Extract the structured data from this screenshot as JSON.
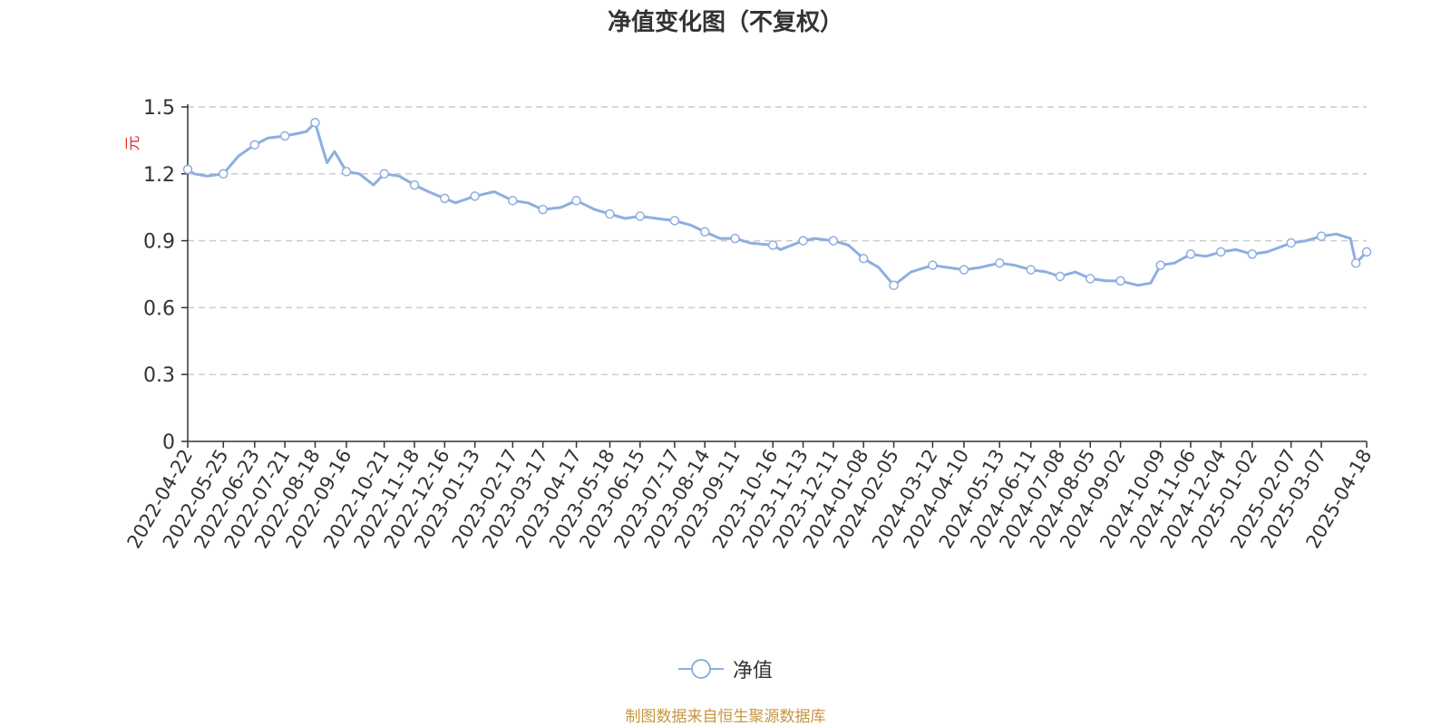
{
  "chart_data": {
    "type": "line",
    "title": "净值变化图（不复权）",
    "ylabel": "元",
    "xlabel": "",
    "ylim": [
      0,
      1.5
    ],
    "yticks": [
      "0",
      "0.3",
      "0.6",
      "0.9",
      "1.2",
      "1.5"
    ],
    "grid": true,
    "legend_position": "bottom",
    "x_tick_labels": [
      "2022-04-22",
      "2022-05-25",
      "2022-06-23",
      "2022-07-21",
      "2022-08-18",
      "2022-09-16",
      "2022-10-21",
      "2022-11-18",
      "2022-12-16",
      "2023-01-13",
      "2023-02-17",
      "2023-03-17",
      "2023-04-17",
      "2023-05-18",
      "2023-06-15",
      "2023-07-17",
      "2023-08-14",
      "2023-09-11",
      "2023-10-16",
      "2023-11-13",
      "2023-12-11",
      "2024-01-08",
      "2024-02-05",
      "2024-03-12",
      "2024-04-10",
      "2024-05-13",
      "2024-06-11",
      "2024-07-08",
      "2024-08-05",
      "2024-09-02",
      "2024-10-09",
      "2024-11-06",
      "2024-12-04",
      "2025-01-02",
      "2025-02-07",
      "2025-03-07",
      "2025-04-18"
    ],
    "series": [
      {
        "name": "净值",
        "color": "#8eaee0",
        "x": [
          "2022-04-22",
          "2022-04-28",
          "2022-05-10",
          "2022-05-25",
          "2022-06-08",
          "2022-06-23",
          "2022-07-05",
          "2022-07-21",
          "2022-08-01",
          "2022-08-10",
          "2022-08-18",
          "2022-08-24",
          "2022-08-29",
          "2022-09-05",
          "2022-09-16",
          "2022-09-28",
          "2022-10-11",
          "2022-10-21",
          "2022-11-04",
          "2022-11-18",
          "2022-12-01",
          "2022-12-16",
          "2022-12-26",
          "2023-01-13",
          "2023-01-31",
          "2023-02-17",
          "2023-03-03",
          "2023-03-17",
          "2023-04-03",
          "2023-04-17",
          "2023-05-04",
          "2023-05-18",
          "2023-06-01",
          "2023-06-15",
          "2023-06-30",
          "2023-07-17",
          "2023-08-01",
          "2023-08-14",
          "2023-08-28",
          "2023-09-11",
          "2023-09-25",
          "2023-10-16",
          "2023-10-23",
          "2023-11-13",
          "2023-11-24",
          "2023-12-11",
          "2023-12-25",
          "2024-01-08",
          "2024-01-22",
          "2024-02-05",
          "2024-02-21",
          "2024-03-12",
          "2024-03-26",
          "2024-04-10",
          "2024-04-25",
          "2024-05-13",
          "2024-05-27",
          "2024-06-11",
          "2024-06-25",
          "2024-07-08",
          "2024-07-22",
          "2024-08-05",
          "2024-08-20",
          "2024-09-02",
          "2024-09-18",
          "2024-09-30",
          "2024-10-09",
          "2024-10-22",
          "2024-11-06",
          "2024-11-20",
          "2024-12-04",
          "2024-12-18",
          "2025-01-02",
          "2025-01-16",
          "2025-02-07",
          "2025-02-21",
          "2025-03-07",
          "2025-03-21",
          "2025-04-03",
          "2025-04-08",
          "2025-04-18"
        ],
        "values": [
          1.22,
          1.2,
          1.19,
          1.2,
          1.28,
          1.33,
          1.36,
          1.37,
          1.38,
          1.39,
          1.43,
          1.33,
          1.25,
          1.3,
          1.21,
          1.2,
          1.15,
          1.2,
          1.19,
          1.15,
          1.12,
          1.09,
          1.07,
          1.1,
          1.12,
          1.08,
          1.07,
          1.04,
          1.05,
          1.08,
          1.04,
          1.02,
          1.0,
          1.01,
          1.0,
          0.99,
          0.97,
          0.94,
          0.91,
          0.91,
          0.89,
          0.88,
          0.86,
          0.9,
          0.91,
          0.9,
          0.88,
          0.82,
          0.78,
          0.7,
          0.76,
          0.79,
          0.78,
          0.77,
          0.78,
          0.8,
          0.79,
          0.77,
          0.76,
          0.74,
          0.76,
          0.73,
          0.72,
          0.72,
          0.7,
          0.71,
          0.79,
          0.8,
          0.84,
          0.83,
          0.85,
          0.86,
          0.84,
          0.85,
          0.89,
          0.9,
          0.92,
          0.93,
          0.91,
          0.8,
          0.85
        ],
        "markers": [
          [
            "2022-04-22",
            1.22
          ],
          [
            "2022-05-25",
            1.2
          ],
          [
            "2022-06-23",
            1.33
          ],
          [
            "2022-07-21",
            1.37
          ],
          [
            "2022-08-18",
            1.43
          ],
          [
            "2022-09-16",
            1.21
          ],
          [
            "2022-10-21",
            1.2
          ],
          [
            "2022-11-18",
            1.15
          ],
          [
            "2022-12-16",
            1.09
          ],
          [
            "2023-01-13",
            1.1
          ],
          [
            "2023-02-17",
            1.08
          ],
          [
            "2023-03-17",
            1.04
          ],
          [
            "2023-04-17",
            1.08
          ],
          [
            "2023-05-18",
            1.02
          ],
          [
            "2023-06-15",
            1.01
          ],
          [
            "2023-07-17",
            0.99
          ],
          [
            "2023-08-14",
            0.94
          ],
          [
            "2023-09-11",
            0.91
          ],
          [
            "2023-10-16",
            0.88
          ],
          [
            "2023-11-13",
            0.9
          ],
          [
            "2023-12-11",
            0.9
          ],
          [
            "2024-01-08",
            0.82
          ],
          [
            "2024-02-05",
            0.7
          ],
          [
            "2024-03-12",
            0.79
          ],
          [
            "2024-04-10",
            0.77
          ],
          [
            "2024-05-13",
            0.8
          ],
          [
            "2024-06-11",
            0.77
          ],
          [
            "2024-07-08",
            0.74
          ],
          [
            "2024-08-05",
            0.73
          ],
          [
            "2024-09-02",
            0.72
          ],
          [
            "2024-10-09",
            0.79
          ],
          [
            "2024-11-06",
            0.84
          ],
          [
            "2024-12-04",
            0.85
          ],
          [
            "2025-01-02",
            0.84
          ],
          [
            "2025-02-07",
            0.89
          ],
          [
            "2025-03-07",
            0.92
          ],
          [
            "2025-04-08",
            0.8
          ],
          [
            "2025-04-18",
            0.85
          ]
        ]
      }
    ]
  },
  "legend": {
    "label": "净值"
  },
  "footer": {
    "source": "制图数据来自恒生聚源数据库"
  }
}
